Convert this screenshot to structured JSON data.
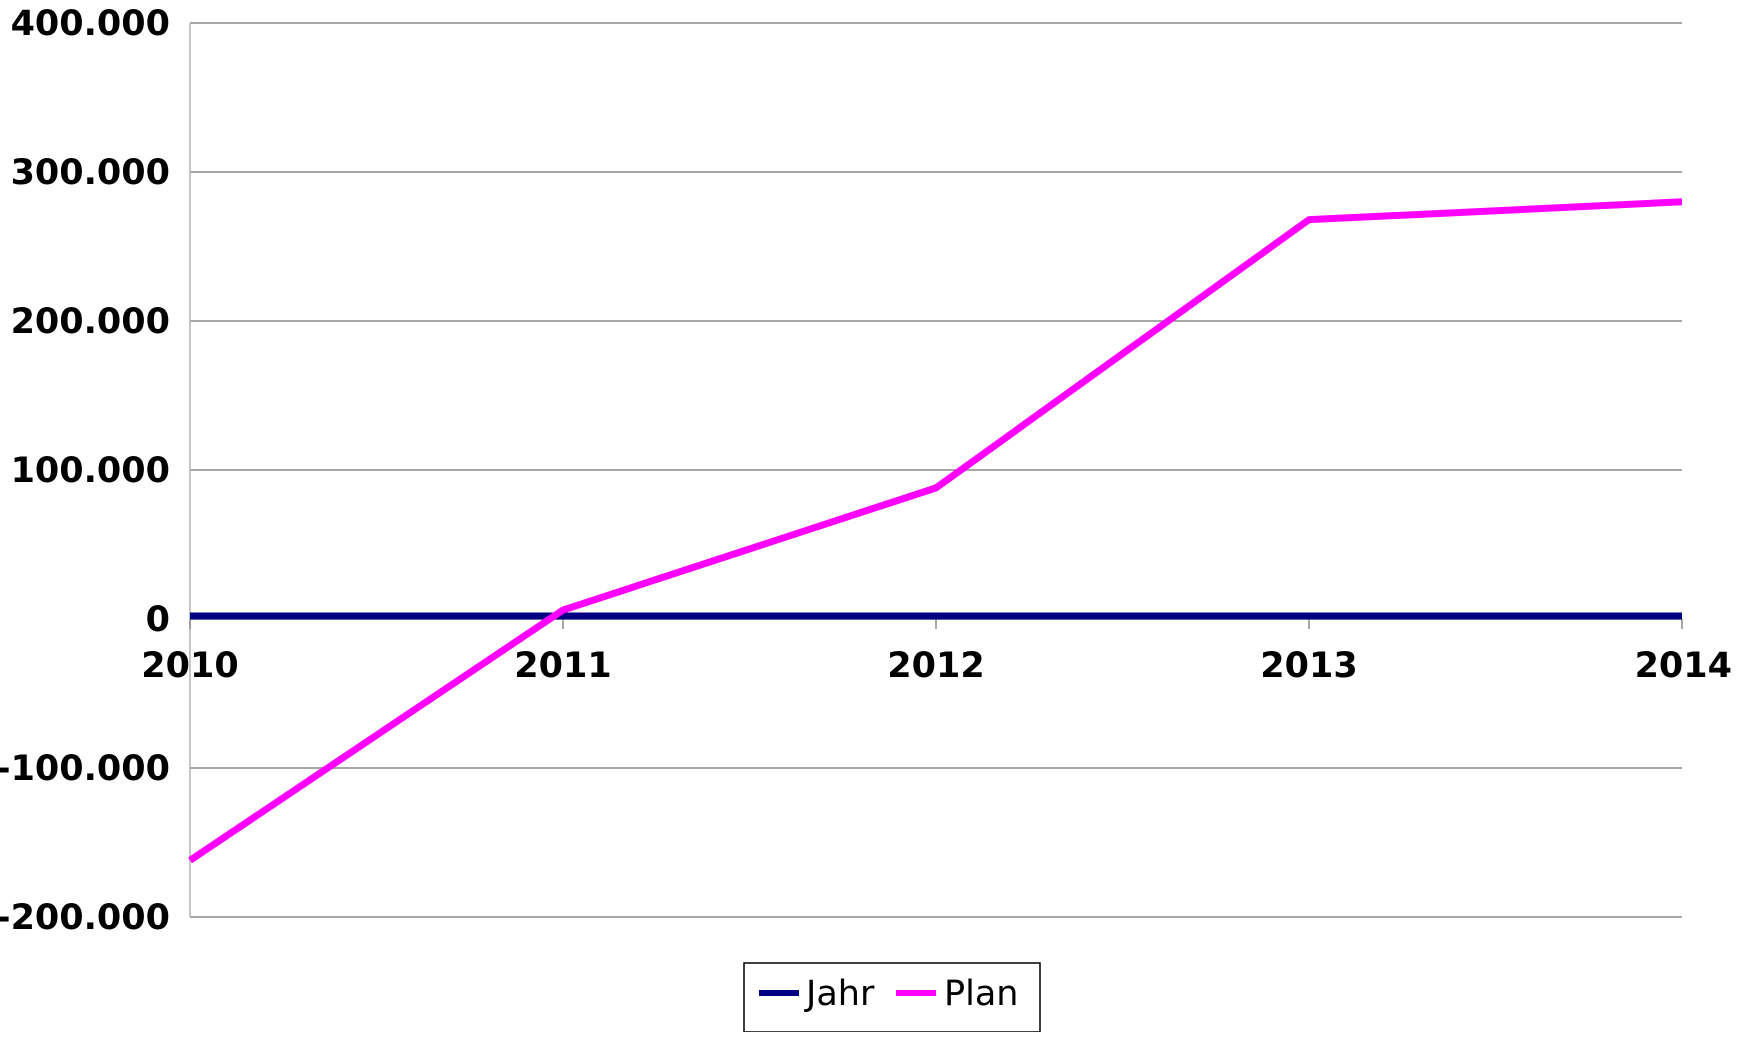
{
  "chart_data": {
    "type": "line",
    "title": "",
    "xlabel": "",
    "ylabel": "",
    "categories": [
      "2010",
      "2011",
      "2012",
      "2013",
      "2014"
    ],
    "ylim": [
      -200000,
      400000
    ],
    "yticks": [
      400000,
      300000,
      200000,
      100000,
      0,
      -100000,
      -200000
    ],
    "ytick_labels": [
      "400.000",
      "300.000",
      "200.000",
      "100.000",
      "0",
      "-100.000",
      "-200.000"
    ],
    "grid": true,
    "legend_position": "bottom",
    "series": [
      {
        "name": "Jahr",
        "color": "#000080",
        "values": [
          2010,
          2011,
          2012,
          2013,
          2014
        ]
      },
      {
        "name": "Plan",
        "color": "#ff00ff",
        "values": [
          -162000,
          6000,
          88000,
          268000,
          280000
        ]
      }
    ]
  }
}
